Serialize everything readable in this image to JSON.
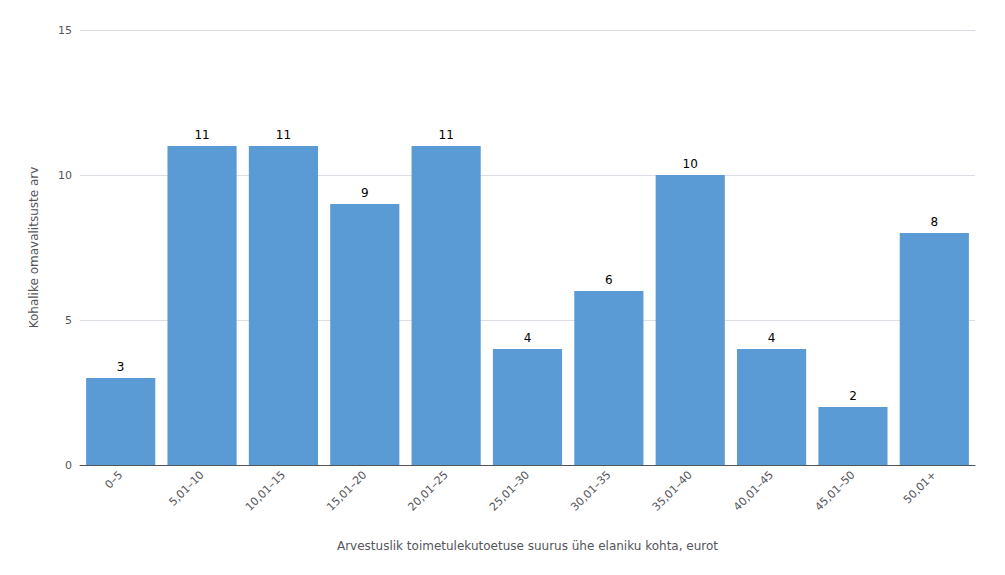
{
  "chart_data": {
    "type": "bar",
    "categories": [
      "0–5",
      "5,01–10",
      "10,01–15",
      "15,01–20",
      "20,01–25",
      "25,01–30",
      "30,01–35",
      "35,01–40",
      "40,01–45",
      "45,01–50",
      "50,01+"
    ],
    "values": [
      3,
      11,
      11,
      9,
      11,
      4,
      6,
      10,
      4,
      2,
      8
    ],
    "color": "#5b9bd5",
    "xlabel": "Arvestuslik toimetulekutoetuse suurus ühe elaniku kohta, eurot",
    "ylabel": "Kohalike omavalitsuste arv",
    "ylim": [
      0,
      15
    ],
    "yticks": [
      0,
      5,
      10,
      15
    ],
    "grid": true,
    "data_labels": true
  }
}
